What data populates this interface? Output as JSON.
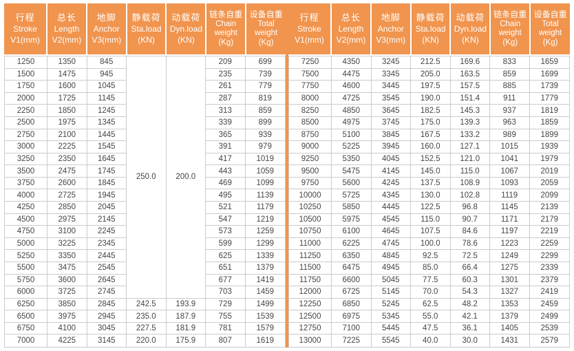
{
  "colors": {
    "header_bg": "#F0944E",
    "header_text": "#FFFFFF",
    "grid_border": "#CBCBCB",
    "cell_text": "#454545",
    "divider": "#F0944E"
  },
  "chart_data": {
    "type": "table",
    "columns": [
      {
        "zh": "行程",
        "en": [
          "Stroke"
        ],
        "unit": "V1(mm)"
      },
      {
        "zh": "总长",
        "en": [
          "Length"
        ],
        "unit": "V2(mm)"
      },
      {
        "zh": "地脚",
        "en": [
          "Anchor"
        ],
        "unit": "V3(mm)"
      },
      {
        "zh": "静载荷",
        "en": [
          "Sta.load"
        ],
        "unit": "(KN)"
      },
      {
        "zh": "动载荷",
        "en": [
          "Dyn.load"
        ],
        "unit": "(KN)"
      },
      {
        "zh": "链条自重",
        "en": [
          "Chain",
          "weight"
        ],
        "unit": "(Kg)"
      },
      {
        "zh": "设备自重",
        "en": [
          "Total",
          "weight"
        ],
        "unit": "(Kg)"
      }
    ],
    "left_table": {
      "merged_cells": {
        "sta_load": "250.0",
        "dyn_load": "200.0",
        "row_span": 20
      },
      "rows": [
        [
          "1250",
          "1350",
          "845",
          null,
          null,
          "209",
          "699"
        ],
        [
          "1500",
          "1475",
          "945",
          null,
          null,
          "235",
          "739"
        ],
        [
          "1750",
          "1600",
          "1045",
          null,
          null,
          "261",
          "779"
        ],
        [
          "2000",
          "1725",
          "1145",
          null,
          null,
          "287",
          "819"
        ],
        [
          "2250",
          "1850",
          "1245",
          null,
          null,
          "313",
          "859"
        ],
        [
          "2500",
          "1975",
          "1345",
          null,
          null,
          "339",
          "899"
        ],
        [
          "2750",
          "2100",
          "1445",
          null,
          null,
          "365",
          "939"
        ],
        [
          "3000",
          "2225",
          "1545",
          null,
          null,
          "391",
          "979"
        ],
        [
          "3250",
          "2350",
          "1645",
          null,
          null,
          "417",
          "1019"
        ],
        [
          "3500",
          "2475",
          "1745",
          null,
          null,
          "443",
          "1059"
        ],
        [
          "3750",
          "2600",
          "1845",
          null,
          null,
          "469",
          "1099"
        ],
        [
          "4000",
          "2725",
          "1945",
          null,
          null,
          "495",
          "1139"
        ],
        [
          "4250",
          "2850",
          "2045",
          null,
          null,
          "521",
          "1179"
        ],
        [
          "4500",
          "2975",
          "2145",
          null,
          null,
          "547",
          "1219"
        ],
        [
          "4750",
          "3100",
          "2245",
          null,
          null,
          "573",
          "1259"
        ],
        [
          "5000",
          "3225",
          "2345",
          null,
          null,
          "599",
          "1299"
        ],
        [
          "5250",
          "3350",
          "2445",
          null,
          null,
          "625",
          "1339"
        ],
        [
          "5500",
          "3475",
          "2545",
          null,
          null,
          "651",
          "1379"
        ],
        [
          "5750",
          "3600",
          "2645",
          null,
          null,
          "677",
          "1419"
        ],
        [
          "6000",
          "3725",
          "2745",
          null,
          null,
          "703",
          "1459"
        ],
        [
          "6250",
          "3850",
          "2845",
          "242.5",
          "193.9",
          "729",
          "1499"
        ],
        [
          "6500",
          "3975",
          "2945",
          "235.0",
          "187.9",
          "755",
          "1539"
        ],
        [
          "6750",
          "4100",
          "3045",
          "227.5",
          "181.9",
          "781",
          "1579"
        ],
        [
          "7000",
          "4225",
          "3145",
          "220.0",
          "175.9",
          "807",
          "1619"
        ]
      ]
    },
    "right_table": {
      "rows": [
        [
          "7250",
          "4350",
          "3245",
          "212.5",
          "169.6",
          "833",
          "1659"
        ],
        [
          "7500",
          "4475",
          "3345",
          "205.0",
          "163.5",
          "859",
          "1699"
        ],
        [
          "7750",
          "4600",
          "3445",
          "197.5",
          "157.5",
          "885",
          "1739"
        ],
        [
          "8000",
          "4725",
          "3545",
          "190.0",
          "151.4",
          "911",
          "1779"
        ],
        [
          "8250",
          "4850",
          "3645",
          "182.5",
          "145.3",
          "937",
          "1819"
        ],
        [
          "8500",
          "4975",
          "3745",
          "175.0",
          "139.3",
          "963",
          "1859"
        ],
        [
          "8750",
          "5100",
          "3845",
          "167.5",
          "133.2",
          "989",
          "1899"
        ],
        [
          "9000",
          "5225",
          "3945",
          "160.0",
          "127.1",
          "1015",
          "1939"
        ],
        [
          "9250",
          "5350",
          "4045",
          "152.5",
          "121.0",
          "1041",
          "1979"
        ],
        [
          "9500",
          "5475",
          "4145",
          "145.0",
          "115.0",
          "1067",
          "2019"
        ],
        [
          "9750",
          "5600",
          "4245",
          "137.5",
          "108.9",
          "1093",
          "2059"
        ],
        [
          "10000",
          "5725",
          "4345",
          "130.0",
          "102.8",
          "1119",
          "2099"
        ],
        [
          "10250",
          "5850",
          "4445",
          "122.5",
          "96.8",
          "1145",
          "2139"
        ],
        [
          "10500",
          "5975",
          "4545",
          "115.0",
          "90.7",
          "1171",
          "2179"
        ],
        [
          "10750",
          "6100",
          "4645",
          "107.5",
          "84.6",
          "1197",
          "2219"
        ],
        [
          "11000",
          "6225",
          "4745",
          "100.0",
          "78.6",
          "1223",
          "2259"
        ],
        [
          "11250",
          "6350",
          "4845",
          "92.5",
          "72.5",
          "1249",
          "2299"
        ],
        [
          "11500",
          "6475",
          "4945",
          "85.0",
          "66.4",
          "1275",
          "2339"
        ],
        [
          "11750",
          "6600",
          "5045",
          "77.5",
          "60.3",
          "1301",
          "2379"
        ],
        [
          "12000",
          "6725",
          "5145",
          "70.0",
          "54.3",
          "1327",
          "2419"
        ],
        [
          "12250",
          "6850",
          "5245",
          "62.5",
          "48.2",
          "1353",
          "2459"
        ],
        [
          "12500",
          "6975",
          "5345",
          "55.0",
          "42.1",
          "1379",
          "2499"
        ],
        [
          "12750",
          "7100",
          "5445",
          "47.5",
          "36.1",
          "1405",
          "2539"
        ],
        [
          "13000",
          "7225",
          "5545",
          "40.0",
          "30.0",
          "1431",
          "2579"
        ]
      ]
    }
  }
}
